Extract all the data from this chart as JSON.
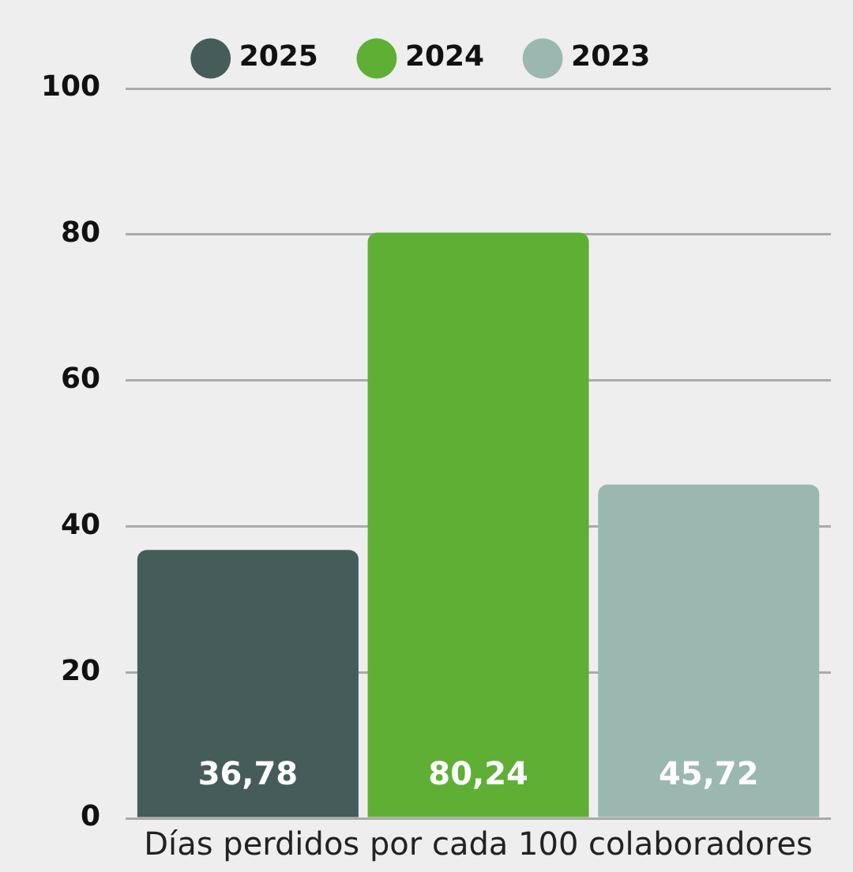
{
  "chart_data": {
    "type": "bar",
    "xlabel": "Días perdidos por cada 100 colaboradores",
    "categories": [
      null
    ],
    "series": [
      {
        "name": "2025",
        "color": "#465c5a",
        "values": [
          36.78
        ],
        "value_labels": [
          "36,78"
        ]
      },
      {
        "name": "2024",
        "color": "#5faf35",
        "values": [
          80.24
        ],
        "value_labels": [
          "80,24"
        ]
      },
      {
        "name": "2023",
        "color": "#9bb8b0",
        "values": [
          45.72
        ],
        "value_labels": [
          "45,72"
        ]
      }
    ],
    "ylim": [
      0,
      100
    ],
    "yticks": [
      0,
      20,
      40,
      60,
      80,
      100
    ],
    "grid": "y",
    "legend": "top"
  }
}
